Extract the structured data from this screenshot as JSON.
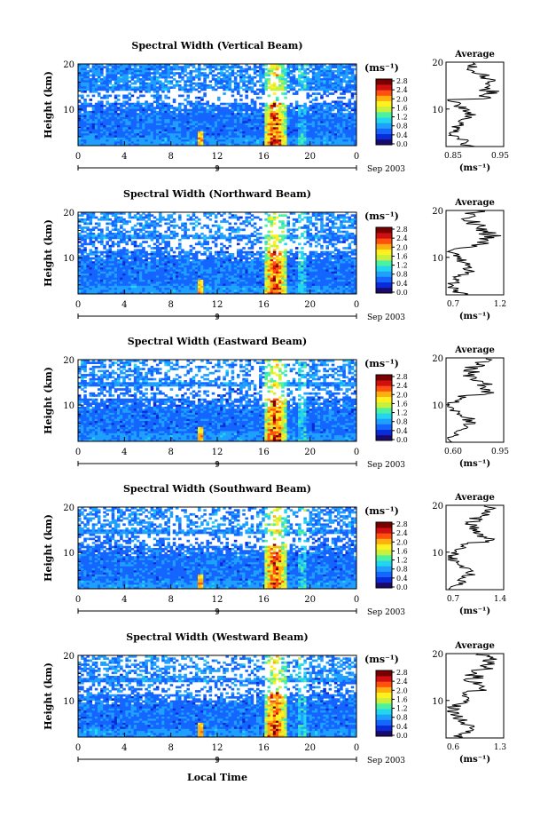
{
  "figure": {
    "xlabel": "Local Time",
    "ylabel": "Height (km)",
    "date_label": "Sep 2003",
    "day_label": "9",
    "colorbar_unit": "(ms⁻¹)",
    "average_title": "Average",
    "average_unit": "(ms⁻¹)",
    "colorbar_ticks": [
      "0.0",
      "0.4",
      "0.8",
      "1.2",
      "1.6",
      "2.0",
      "2.4",
      "2.8"
    ],
    "colormap": [
      "#1a0a6e",
      "#0a2bd8",
      "#1565ff",
      "#1fa0ff",
      "#22d6ee",
      "#4cf2a0",
      "#c8f03c",
      "#fff020",
      "#ffb010",
      "#ff5010",
      "#d01010",
      "#7a0000"
    ]
  },
  "chart_data": [
    {
      "type": "heatmap",
      "title": "Spectral Width (Vertical Beam)",
      "x_ticks": [
        "0",
        "4",
        "8",
        "12",
        "16",
        "20",
        "0"
      ],
      "y_ticks": [
        "20",
        "10"
      ],
      "xlim": [
        0,
        24
      ],
      "ylim": [
        2,
        20
      ],
      "color_range": [
        0.0,
        2.8
      ],
      "profile": {
        "xlim": [
          0.85,
          0.95
        ],
        "x_ticks": [
          "0.85",
          "0.95"
        ],
        "y_ticks": [
          "20",
          "10"
        ]
      }
    },
    {
      "type": "heatmap",
      "title": "Spectral Width (Northward Beam)",
      "x_ticks": [
        "0",
        "4",
        "8",
        "12",
        "16",
        "20",
        "0"
      ],
      "y_ticks": [
        "20",
        "10"
      ],
      "xlim": [
        0,
        24
      ],
      "ylim": [
        2,
        20
      ],
      "color_range": [
        0.0,
        2.8
      ],
      "profile": {
        "xlim": [
          0.7,
          1.2
        ],
        "x_ticks": [
          "0.7",
          "1.2"
        ],
        "y_ticks": [
          "20",
          "10"
        ]
      }
    },
    {
      "type": "heatmap",
      "title": "Spectral Width (Eastward Beam)",
      "x_ticks": [
        "0",
        "4",
        "8",
        "12",
        "16",
        "20",
        "0"
      ],
      "y_ticks": [
        "20",
        "10"
      ],
      "xlim": [
        0,
        24
      ],
      "ylim": [
        2,
        20
      ],
      "color_range": [
        0.0,
        2.8
      ],
      "profile": {
        "xlim": [
          0.6,
          0.95
        ],
        "x_ticks": [
          "0.60",
          "0.95"
        ],
        "y_ticks": [
          "20",
          "10"
        ]
      }
    },
    {
      "type": "heatmap",
      "title": "Spectral Width (Southward Beam)",
      "x_ticks": [
        "0",
        "4",
        "8",
        "12",
        "16",
        "20",
        "0"
      ],
      "y_ticks": [
        "20",
        "10"
      ],
      "xlim": [
        0,
        24
      ],
      "ylim": [
        2,
        20
      ],
      "color_range": [
        0.0,
        2.8
      ],
      "profile": {
        "xlim": [
          0.7,
          1.4
        ],
        "x_ticks": [
          "0.7",
          "1.4"
        ],
        "y_ticks": [
          "20",
          "10"
        ]
      }
    },
    {
      "type": "heatmap",
      "title": "Spectral Width (Westward Beam)",
      "x_ticks": [
        "0",
        "4",
        "8",
        "12",
        "16",
        "20",
        "0"
      ],
      "y_ticks": [
        "20",
        "10"
      ],
      "xlim": [
        0,
        24
      ],
      "ylim": [
        2,
        20
      ],
      "color_range": [
        0.0,
        2.8
      ],
      "profile": {
        "xlim": [
          0.6,
          1.3
        ],
        "x_ticks": [
          "0.6",
          "1.3"
        ],
        "y_ticks": [
          "20",
          "10"
        ]
      }
    }
  ]
}
